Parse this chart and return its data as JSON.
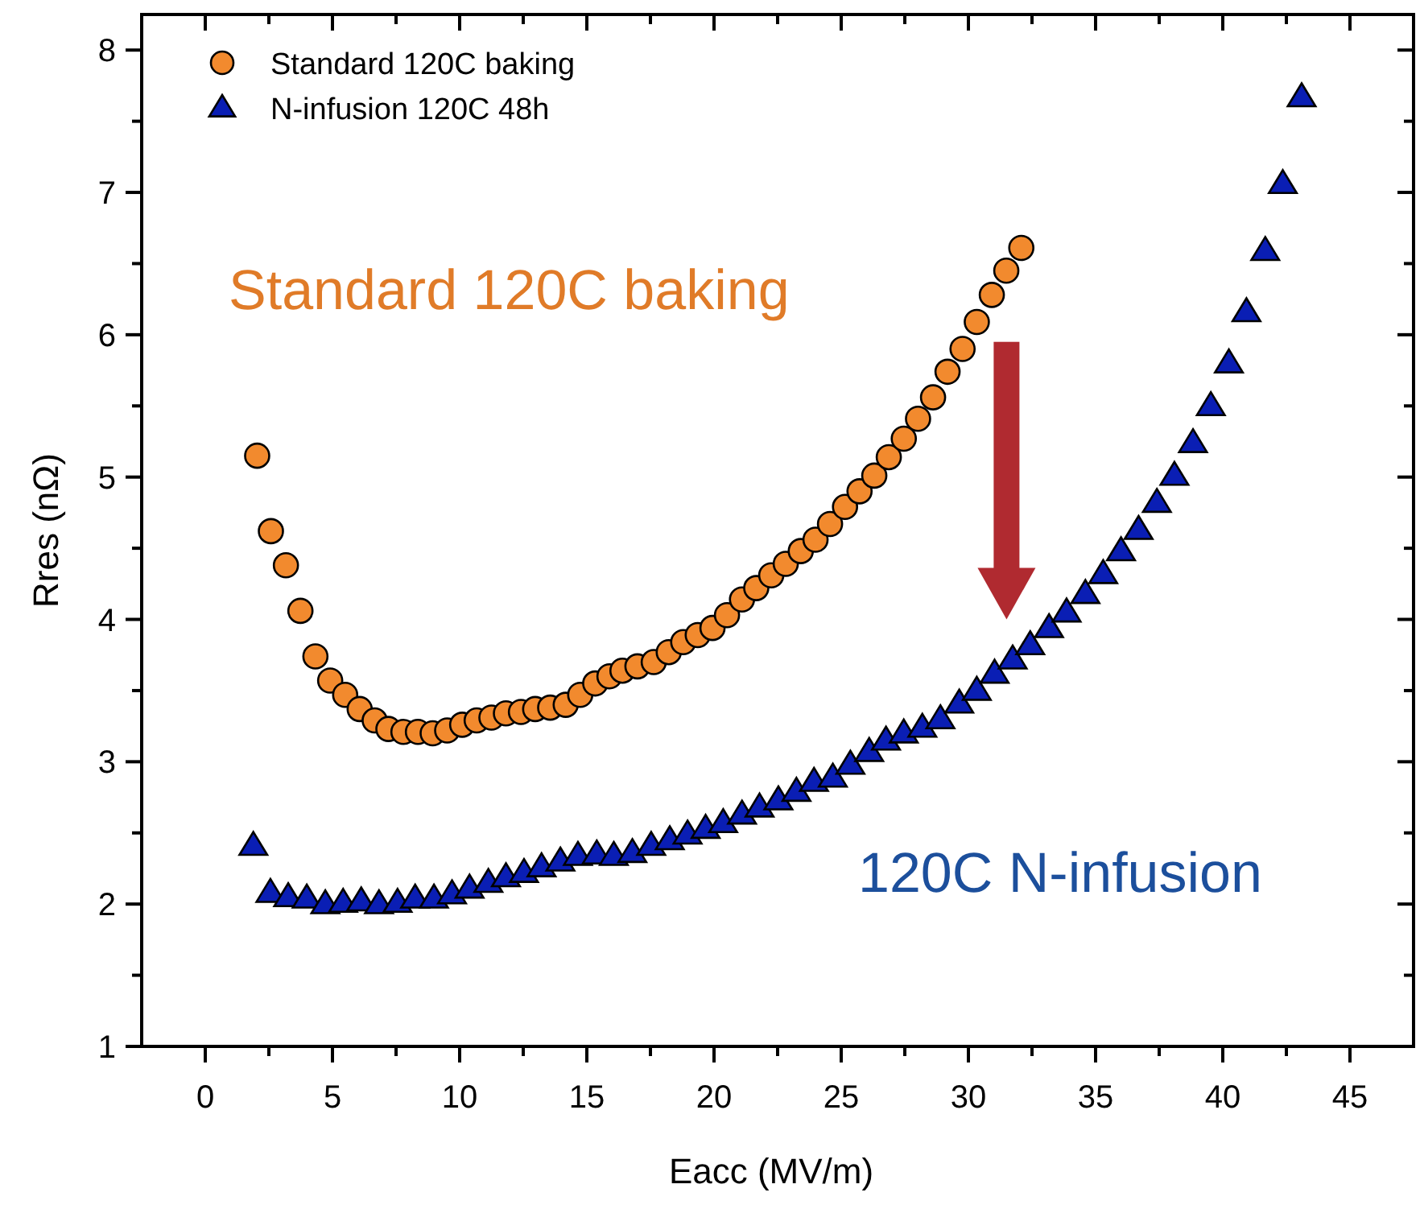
{
  "chart_data": {
    "type": "scatter",
    "xlabel": "Eacc (MV/m)",
    "ylabel": "Rres (nΩ)",
    "xlim": [
      -2.5,
      47.5
    ],
    "ylim": [
      1,
      8.25
    ],
    "xticks": [
      0,
      {
        "value": 2.5,
        "label": null
      },
      5,
      {
        "value": 7.5,
        "label": null
      },
      10,
      {
        "value": 12.5,
        "label": null
      },
      15,
      {
        "value": 17.5,
        "label": null
      },
      20,
      {
        "value": 22.5,
        "label": null
      },
      25,
      {
        "value": 27.5,
        "label": null
      },
      30,
      {
        "value": 32.5,
        "label": null
      },
      35,
      {
        "value": 37.5,
        "label": null
      },
      40,
      {
        "value": 42.5,
        "label": null
      },
      45
    ],
    "yticks": [
      1,
      {
        "value": 1.5,
        "label": null
      },
      2,
      {
        "value": 2.5,
        "label": null
      },
      3,
      {
        "value": 3.5,
        "label": null
      },
      4,
      {
        "value": 4.5,
        "label": null
      },
      5,
      {
        "value": 5.5,
        "label": null
      },
      6,
      {
        "value": 6.5,
        "label": null
      },
      7,
      {
        "value": 7.5,
        "label": null
      },
      8
    ],
    "grid": false,
    "legend": "top left",
    "series": [
      {
        "name": "Standard 120C baking",
        "color": "#f28a2e",
        "marker": "circle",
        "x": [
          2.04,
          2.58,
          3.17,
          3.74,
          4.33,
          4.91,
          5.5,
          6.07,
          6.66,
          7.2,
          7.79,
          8.36,
          8.94,
          9.51,
          10.1,
          10.67,
          11.25,
          11.82,
          12.41,
          12.97,
          13.56,
          14.17,
          14.74,
          15.33,
          15.89,
          16.4,
          16.99,
          17.63,
          18.22,
          18.79,
          19.36,
          19.94,
          20.51,
          21.1,
          21.66,
          22.25,
          22.82,
          23.41,
          23.99,
          24.56,
          25.15,
          25.72,
          26.3,
          26.87,
          27.46,
          28.02,
          28.61,
          29.18,
          29.77,
          30.33,
          30.92,
          31.49,
          32.08
        ],
        "values": [
          5.15,
          4.62,
          4.38,
          4.06,
          3.74,
          3.57,
          3.47,
          3.37,
          3.29,
          3.23,
          3.21,
          3.21,
          3.2,
          3.22,
          3.26,
          3.29,
          3.31,
          3.34,
          3.35,
          3.37,
          3.38,
          3.4,
          3.47,
          3.55,
          3.6,
          3.64,
          3.67,
          3.7,
          3.77,
          3.84,
          3.89,
          3.94,
          4.03,
          4.14,
          4.22,
          4.31,
          4.39,
          4.48,
          4.56,
          4.67,
          4.79,
          4.9,
          5.01,
          5.14,
          5.27,
          5.41,
          5.56,
          5.74,
          5.9,
          6.09,
          6.28,
          6.45,
          6.61
        ]
      },
      {
        "name": "N-infusion 120C 48h",
        "color": "#0a1eb4",
        "marker": "triangle",
        "x": [
          1.89,
          2.56,
          3.26,
          3.99,
          4.72,
          5.42,
          6.13,
          6.83,
          7.56,
          8.25,
          8.99,
          9.7,
          10.39,
          11.13,
          11.82,
          12.53,
          13.22,
          13.96,
          14.65,
          15.39,
          16.06,
          16.79,
          17.53,
          18.26,
          18.96,
          19.67,
          20.36,
          21.1,
          21.79,
          22.53,
          23.24,
          23.93,
          24.67,
          25.36,
          26.1,
          26.76,
          27.46,
          28.19,
          28.9,
          29.64,
          30.33,
          31.03,
          31.74,
          32.43,
          33.17,
          33.86,
          34.6,
          35.3,
          36.0,
          36.69,
          37.41,
          38.1,
          38.83,
          39.53,
          40.24,
          40.93,
          41.67,
          42.36,
          43.1
        ],
        "values": [
          2.41,
          2.08,
          2.05,
          2.04,
          2.0,
          2.01,
          2.02,
          2.0,
          2.01,
          2.04,
          2.04,
          2.07,
          2.11,
          2.15,
          2.19,
          2.22,
          2.26,
          2.3,
          2.34,
          2.35,
          2.34,
          2.36,
          2.41,
          2.45,
          2.49,
          2.53,
          2.57,
          2.63,
          2.68,
          2.73,
          2.79,
          2.86,
          2.89,
          2.98,
          3.07,
          3.15,
          3.2,
          3.24,
          3.3,
          3.41,
          3.5,
          3.62,
          3.72,
          3.82,
          3.94,
          4.05,
          4.18,
          4.32,
          4.48,
          4.63,
          4.82,
          5.01,
          5.24,
          5.5,
          5.8,
          6.16,
          6.59,
          7.06,
          7.67
        ]
      }
    ],
    "annotations": [
      "Standard 120C baking",
      "120C N-infusion"
    ]
  }
}
